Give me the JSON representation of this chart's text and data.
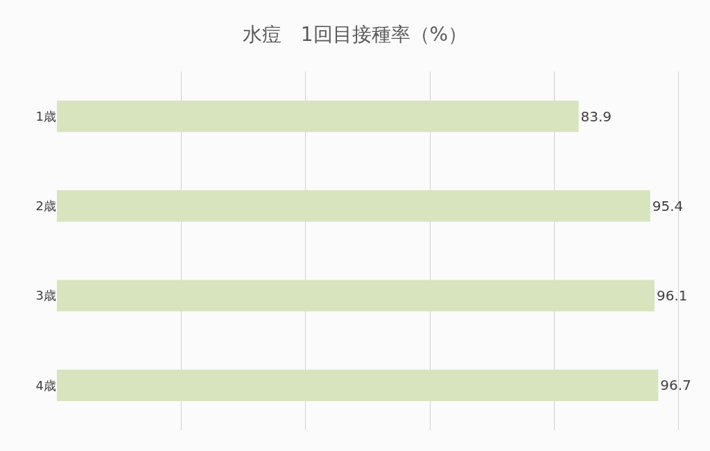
{
  "chart_data": {
    "type": "bar",
    "orientation": "horizontal",
    "title": "水痘　1回目接種率（%）",
    "categories": [
      "1歳",
      "2歳",
      "3歳",
      "4歳"
    ],
    "values": [
      83.9,
      95.4,
      96.1,
      96.7
    ],
    "color": "#d7e4bd",
    "grid": "x",
    "data_labels": true
  }
}
